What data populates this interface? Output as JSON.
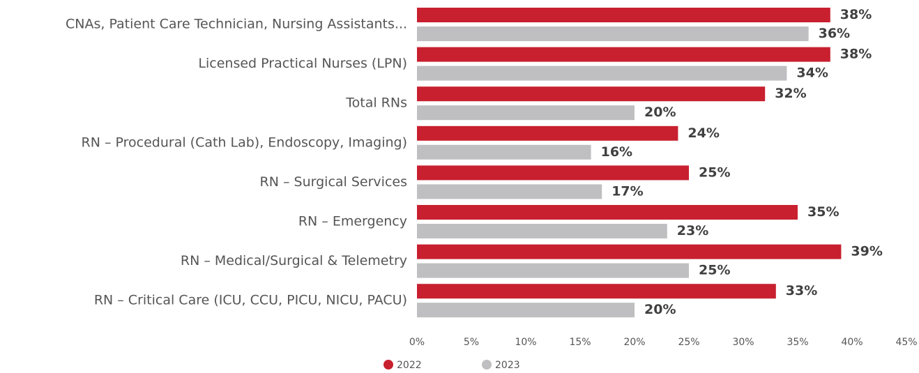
{
  "chart_data": {
    "type": "hbar",
    "categories": [
      "CNAs, Patient Care Technician, Nursing Assistants...",
      "Licensed Practical Nurses (LPN)",
      "Total RNs",
      "RN – Procedural (Cath Lab), Endoscopy, Imaging)",
      "RN – Surgical Services",
      "RN – Emergency",
      "RN – Medical/Surgical & Telemetry",
      "RN – Critical Care (ICU, CCU, PICU, NICU, PACU)"
    ],
    "series": [
      {
        "name": "2022",
        "color": "#c8202f",
        "values": [
          38,
          38,
          32,
          24,
          25,
          35,
          39,
          33
        ],
        "value_labels": [
          "38%",
          "38%",
          "32%",
          "24%",
          "25%",
          "35%",
          "39%",
          "33%"
        ]
      },
      {
        "name": "2023",
        "color": "#bfbfc1",
        "values": [
          36,
          34,
          20,
          16,
          17,
          23,
          25,
          20
        ],
        "value_labels": [
          "36%",
          "34%",
          "20%",
          "16%",
          "17%",
          "23%",
          "25%",
          "20%"
        ]
      }
    ],
    "xlim": [
      0,
      45
    ],
    "xticks": [
      {
        "value": 0,
        "label": "0%"
      },
      {
        "value": 5,
        "label": "5%"
      },
      {
        "value": 10,
        "label": "10%"
      },
      {
        "value": 15,
        "label": "15%"
      },
      {
        "value": 20,
        "label": "20%"
      },
      {
        "value": 25,
        "label": "25%"
      },
      {
        "value": 30,
        "label": "30%"
      },
      {
        "value": 35,
        "label": "35%"
      },
      {
        "value": 40,
        "label": "40%"
      },
      {
        "value": 45,
        "label": "45%"
      }
    ],
    "legend": "bottom"
  }
}
